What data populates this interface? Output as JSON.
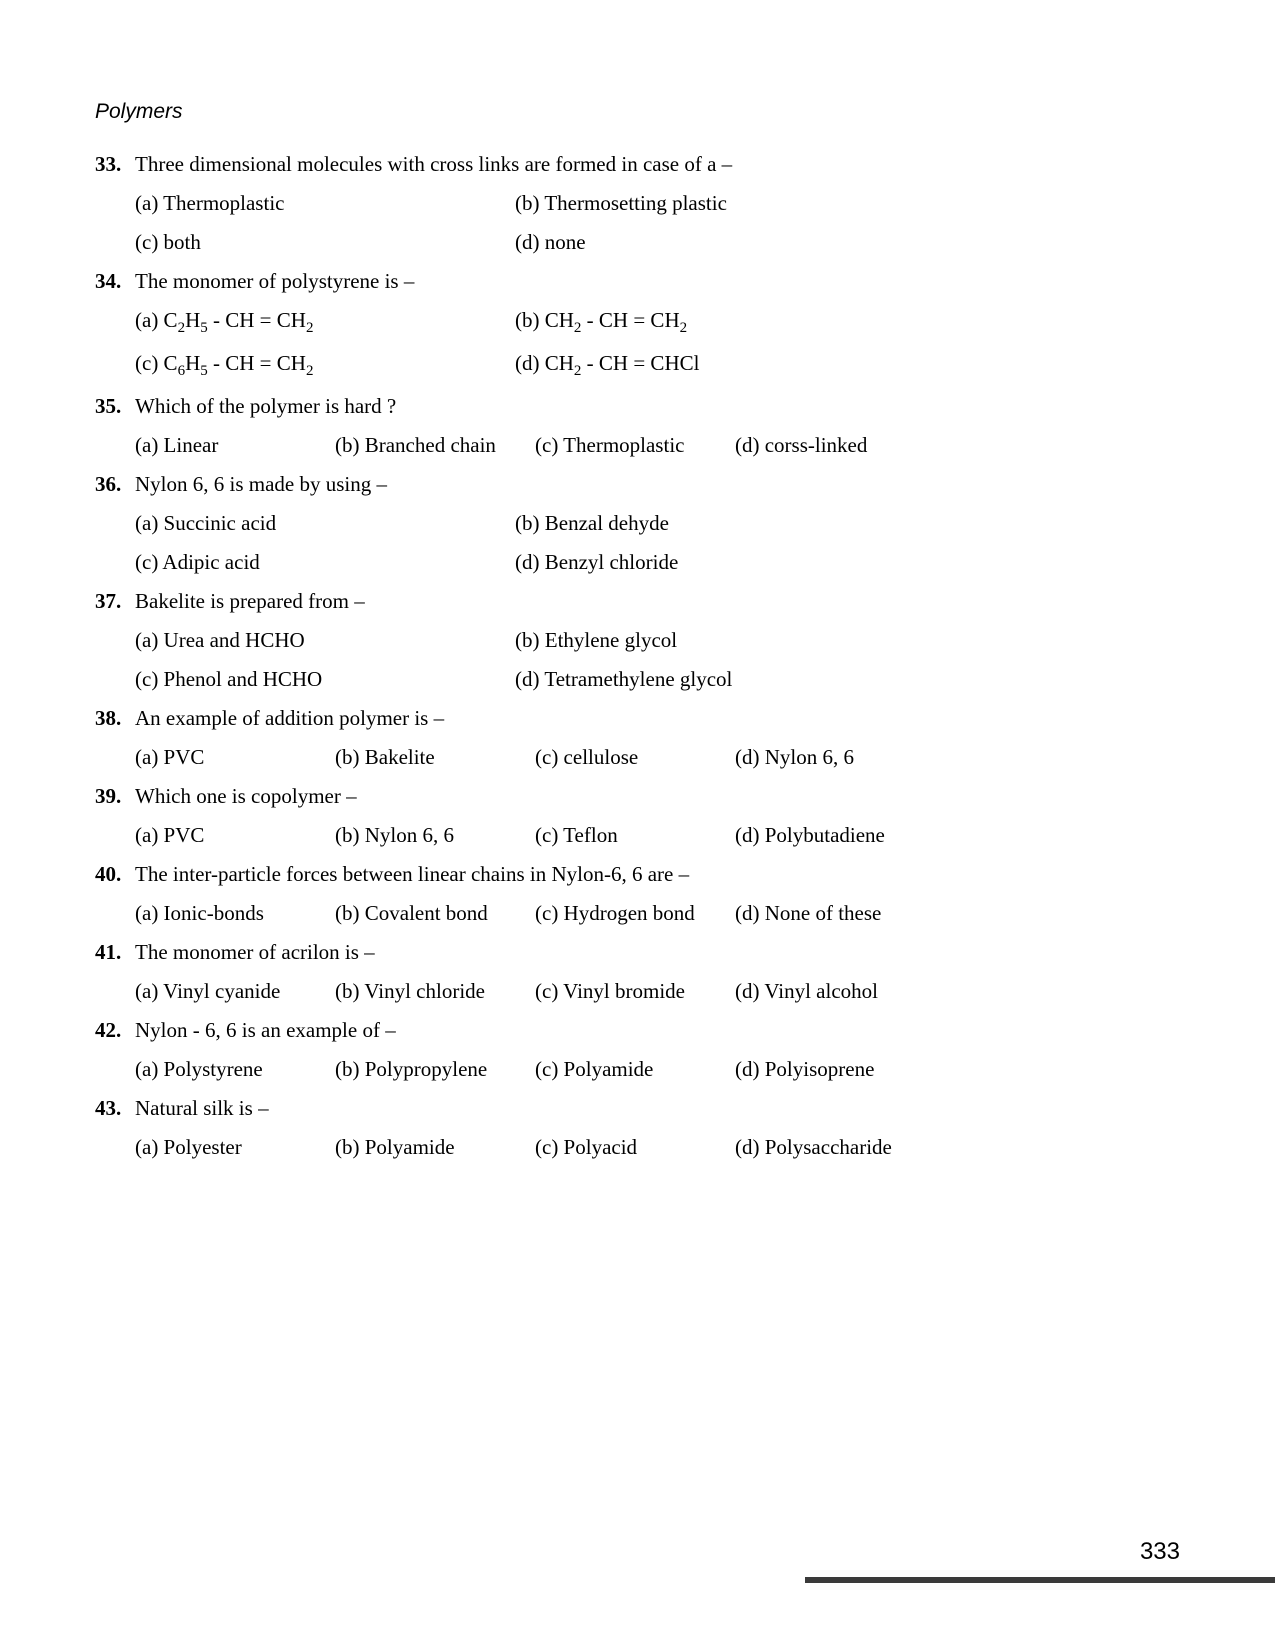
{
  "header": "Polymers",
  "page_number": "333",
  "questions": [
    {
      "num": "33.",
      "text": "Three dimensional molecules with cross links are formed in case of a –",
      "layout": "2col-2row",
      "options": [
        "(a) Thermoplastic",
        "(b) Thermosetting plastic",
        "(c)  both",
        "(d) none"
      ]
    },
    {
      "num": "34.",
      "text": "The monomer of polystyrene is –",
      "layout": "2col-2row-formula",
      "options": [
        {
          "pre": "(a) C",
          "s1": "2",
          "mid1": "H",
          "s2": "5",
          "mid2": " - CH = CH",
          "s3": "2",
          "post": ""
        },
        {
          "pre": "(b) CH",
          "s1": "2",
          "mid1": " - CH = CH",
          "s2": "2",
          "mid2": "",
          "s3": "",
          "post": ""
        },
        {
          "pre": "(c) C",
          "s1": "6",
          "mid1": "H",
          "s2": "5",
          "mid2": " - CH = CH",
          "s3": "2",
          "post": ""
        },
        {
          "pre": "(d) CH",
          "s1": "2",
          "mid1": " - CH = CHCl",
          "s2": "",
          "mid2": "",
          "s3": "",
          "post": ""
        }
      ]
    },
    {
      "num": "35.",
      "text": "Which of the polymer is hard ?",
      "layout": "4col",
      "options": [
        "(a) Linear",
        "(b) Branched chain",
        "(c) Thermoplastic",
        "(d) corss-linked"
      ]
    },
    {
      "num": "36.",
      "text": "Nylon 6, 6 is made by using –",
      "layout": "2col-2row",
      "options": [
        "(a) Succinic acid",
        "(b) Benzal dehyde",
        "(c) Adipic acid",
        "(d) Benzyl chloride"
      ]
    },
    {
      "num": "37.",
      "text": "Bakelite is prepared from –",
      "layout": "2col-2row",
      "options": [
        "(a) Urea and HCHO",
        "(b) Ethylene glycol",
        "(c) Phenol and HCHO",
        "(d) Tetramethylene glycol"
      ]
    },
    {
      "num": "38.",
      "text": "An example of addition polymer is –",
      "layout": "4col",
      "options": [
        "(a) PVC",
        "(b) Bakelite",
        "(c) cellulose",
        "(d) Nylon 6, 6"
      ]
    },
    {
      "num": "39.",
      "text": "Which one is copolymer –",
      "layout": "4col",
      "options": [
        "(a) PVC",
        "(b) Nylon 6, 6",
        "(c) Teflon",
        "(d) Polybutadiene"
      ]
    },
    {
      "num": "40.",
      "text": "The inter-particle forces between linear chains in Nylon-6, 6 are –",
      "layout": "4col",
      "options": [
        "(a) Ionic-bonds",
        "(b) Covalent bond",
        "(c) Hydrogen bond",
        "(d) None of these"
      ]
    },
    {
      "num": "41.",
      "text": "The monomer of acrilon is –",
      "layout": "4col",
      "options": [
        "(a) Vinyl cyanide",
        "(b) Vinyl chloride",
        "(c) Vinyl bromide",
        "(d) Vinyl alcohol"
      ]
    },
    {
      "num": "42.",
      "text": "Nylon - 6, 6 is an example of –",
      "layout": "4col",
      "options": [
        "(a) Polystyrene",
        "(b) Polypropylene",
        "(c) Polyamide",
        "(d) Polyisoprene"
      ]
    },
    {
      "num": "43.",
      "text": "Natural silk is –",
      "layout": "4col",
      "options": [
        "(a) Polyester",
        "(b) Polyamide",
        "(c) Polyacid",
        "(d) Polysaccharide"
      ]
    }
  ]
}
